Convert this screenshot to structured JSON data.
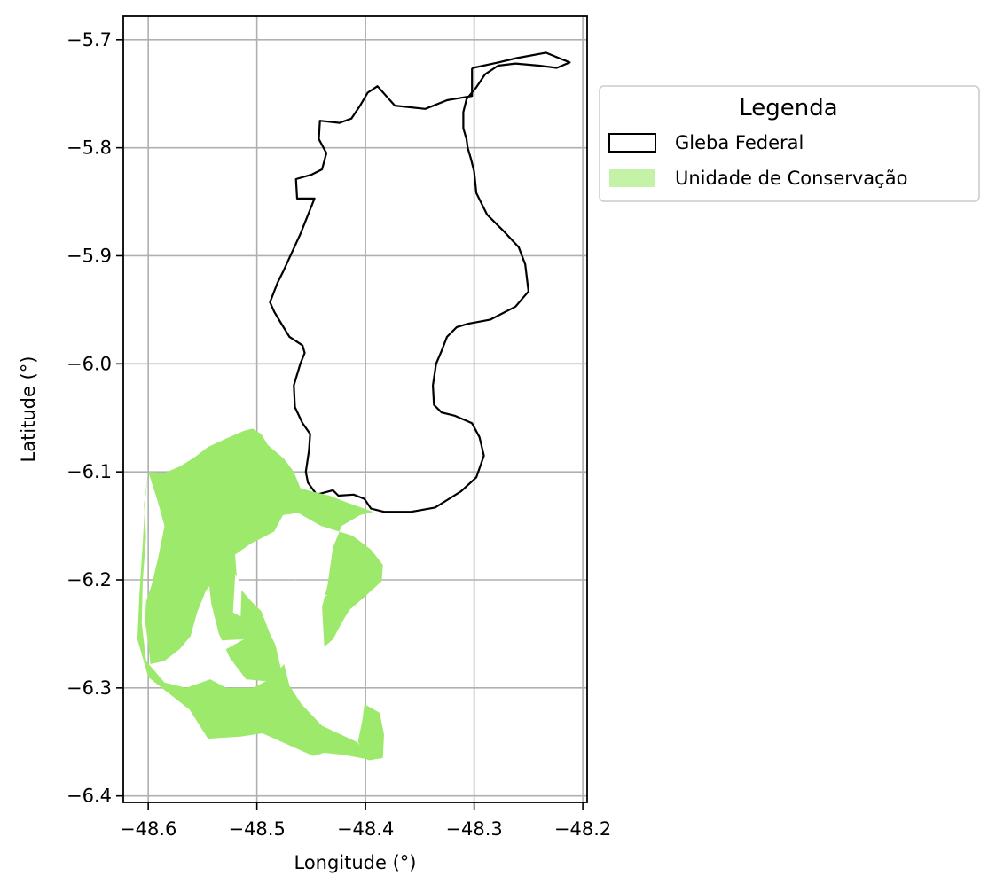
{
  "chart_data": {
    "type": "map",
    "xlabel": "Longitude (°)",
    "ylabel": "Latitude (°)",
    "xlim": [
      -48.623,
      -48.196
    ],
    "ylim": [
      -6.406,
      -5.678
    ],
    "x_ticks": [
      -48.6,
      -48.5,
      -48.4,
      -48.3,
      -48.2
    ],
    "x_tick_labels": [
      "−48.6",
      "−48.5",
      "−48.4",
      "−48.3",
      "−48.2"
    ],
    "y_ticks": [
      -5.7,
      -5.8,
      -5.9,
      -6.0,
      -6.1,
      -6.2,
      -6.3,
      -6.4
    ],
    "y_tick_labels": [
      "−5.7",
      "−5.8",
      "−5.9",
      "−6.0",
      "−6.1",
      "−6.2",
      "−6.3",
      "−6.4"
    ],
    "grid": true,
    "legend": {
      "title": "Legenda",
      "placement": "outside-right-top",
      "entries": [
        {
          "label": "Gleba Federal",
          "style": "outline",
          "color": "#000000"
        },
        {
          "label": "Unidade de Conservação",
          "style": "fill",
          "color": "#9de96b"
        }
      ]
    },
    "layers": [
      {
        "name": "Gleba Federal",
        "style": "outline",
        "stroke": "#000000",
        "polygons": [
          [
            [
              -48.301,
              -5.726
            ],
            [
              -48.278,
              -5.721
            ],
            [
              -48.261,
              -5.717
            ],
            [
              -48.234,
              -5.712
            ],
            [
              -48.212,
              -5.721
            ],
            [
              -48.224,
              -5.726
            ],
            [
              -48.24,
              -5.724
            ],
            [
              -48.262,
              -5.722
            ],
            [
              -48.278,
              -5.724
            ],
            [
              -48.29,
              -5.732
            ],
            [
              -48.298,
              -5.744
            ],
            [
              -48.307,
              -5.755
            ],
            [
              -48.31,
              -5.767
            ],
            [
              -48.31,
              -5.782
            ],
            [
              -48.307,
              -5.792
            ],
            [
              -48.306,
              -5.8
            ],
            [
              -48.303,
              -5.81
            ],
            [
              -48.3,
              -5.822
            ],
            [
              -48.298,
              -5.842
            ],
            [
              -48.288,
              -5.862
            ],
            [
              -48.272,
              -5.878
            ],
            [
              -48.259,
              -5.892
            ],
            [
              -48.253,
              -5.908
            ],
            [
              -48.25,
              -5.933
            ],
            [
              -48.262,
              -5.947
            ],
            [
              -48.285,
              -5.959
            ],
            [
              -48.306,
              -5.963
            ],
            [
              -48.316,
              -5.966
            ],
            [
              -48.325,
              -5.975
            ],
            [
              -48.33,
              -5.988
            ],
            [
              -48.335,
              -6.0
            ],
            [
              -48.338,
              -6.02
            ],
            [
              -48.337,
              -6.038
            ],
            [
              -48.33,
              -6.045
            ],
            [
              -48.318,
              -6.048
            ],
            [
              -48.302,
              -6.055
            ],
            [
              -48.295,
              -6.068
            ],
            [
              -48.291,
              -6.085
            ],
            [
              -48.298,
              -6.105
            ],
            [
              -48.312,
              -6.118
            ],
            [
              -48.336,
              -6.133
            ],
            [
              -48.358,
              -6.137
            ],
            [
              -48.383,
              -6.137
            ],
            [
              -48.395,
              -6.134
            ],
            [
              -48.401,
              -6.125
            ],
            [
              -48.411,
              -6.121
            ],
            [
              -48.425,
              -6.122
            ],
            [
              -48.43,
              -6.117
            ],
            [
              -48.445,
              -6.121
            ],
            [
              -48.453,
              -6.11
            ],
            [
              -48.455,
              -6.1
            ],
            [
              -48.452,
              -6.08
            ],
            [
              -48.451,
              -6.065
            ],
            [
              -48.458,
              -6.055
            ],
            [
              -48.465,
              -6.04
            ],
            [
              -48.466,
              -6.02
            ],
            [
              -48.46,
              -6.0
            ],
            [
              -48.456,
              -5.99
            ],
            [
              -48.458,
              -5.983
            ],
            [
              -48.47,
              -5.975
            ],
            [
              -48.478,
              -5.962
            ],
            [
              -48.484,
              -5.952
            ],
            [
              -48.488,
              -5.943
            ],
            [
              -48.481,
              -5.925
            ],
            [
              -48.476,
              -5.915
            ],
            [
              -48.46,
              -5.88
            ],
            [
              -48.447,
              -5.847
            ],
            [
              -48.463,
              -5.847
            ],
            [
              -48.464,
              -5.829
            ],
            [
              -48.45,
              -5.825
            ],
            [
              -48.44,
              -5.82
            ],
            [
              -48.436,
              -5.805
            ],
            [
              -48.443,
              -5.792
            ],
            [
              -48.442,
              -5.775
            ],
            [
              -48.424,
              -5.777
            ],
            [
              -48.413,
              -5.773
            ],
            [
              -48.405,
              -5.761
            ],
            [
              -48.398,
              -5.749
            ],
            [
              -48.389,
              -5.743
            ],
            [
              -48.373,
              -5.761
            ],
            [
              -48.345,
              -5.764
            ],
            [
              -48.325,
              -5.756
            ],
            [
              -48.302,
              -5.752
            ],
            [
              -48.302,
              -5.727
            ],
            [
              -48.301,
              -5.726
            ]
          ]
        ]
      },
      {
        "name": "Unidade de Conservação",
        "style": "fill",
        "fill": "#9de96b",
        "polygons": [
          [
            [
              -48.6,
              -6.1
            ],
            [
              -48.585,
              -6.101
            ],
            [
              -48.571,
              -6.095
            ],
            [
              -48.558,
              -6.087
            ],
            [
              -48.545,
              -6.077
            ],
            [
              -48.528,
              -6.069
            ],
            [
              -48.512,
              -6.062
            ],
            [
              -48.504,
              -6.06
            ],
            [
              -48.496,
              -6.065
            ],
            [
              -48.49,
              -6.075
            ],
            [
              -48.475,
              -6.088
            ],
            [
              -48.466,
              -6.1
            ],
            [
              -48.46,
              -6.115
            ],
            [
              -48.45,
              -6.118
            ],
            [
              -48.433,
              -6.122
            ],
            [
              -48.418,
              -6.128
            ],
            [
              -48.393,
              -6.137
            ],
            [
              -48.405,
              -6.14
            ],
            [
              -48.422,
              -6.15
            ],
            [
              -48.43,
              -6.17
            ],
            [
              -48.435,
              -6.205
            ],
            [
              -48.44,
              -6.225
            ],
            [
              -48.438,
              -6.262
            ],
            [
              -48.43,
              -6.255
            ],
            [
              -48.422,
              -6.24
            ],
            [
              -48.415,
              -6.228
            ],
            [
              -48.4,
              -6.215
            ],
            [
              -48.385,
              -6.201
            ],
            [
              -48.384,
              -6.186
            ],
            [
              -48.395,
              -6.172
            ],
            [
              -48.412,
              -6.159
            ],
            [
              -48.441,
              -6.15
            ],
            [
              -48.462,
              -6.138
            ],
            [
              -48.476,
              -6.14
            ],
            [
              -48.484,
              -6.155
            ],
            [
              -48.497,
              -6.162
            ],
            [
              -48.505,
              -6.166
            ],
            [
              -48.522,
              -6.178
            ],
            [
              -48.547,
              -6.21
            ],
            [
              -48.555,
              -6.23
            ],
            [
              -48.561,
              -6.252
            ],
            [
              -48.571,
              -6.264
            ],
            [
              -48.585,
              -6.275
            ],
            [
              -48.598,
              -6.278
            ],
            [
              -48.6,
              -6.26
            ],
            [
              -48.603,
              -6.238
            ],
            [
              -48.602,
              -6.22
            ],
            [
              -48.597,
              -6.205
            ],
            [
              -48.591,
              -6.18
            ],
            [
              -48.585,
              -6.15
            ],
            [
              -48.592,
              -6.125
            ],
            [
              -48.6,
              -6.1
            ]
          ],
          [
            [
              -48.6,
              -6.1
            ],
            [
              -48.604,
              -6.13
            ],
            [
              -48.602,
              -6.16
            ],
            [
              -48.605,
              -6.2
            ],
            [
              -48.606,
              -6.24
            ],
            [
              -48.602,
              -6.275
            ],
            [
              -48.585,
              -6.295
            ],
            [
              -48.565,
              -6.3
            ],
            [
              -48.543,
              -6.292
            ],
            [
              -48.528,
              -6.3
            ],
            [
              -48.504,
              -6.3
            ],
            [
              -48.486,
              -6.291
            ],
            [
              -48.475,
              -6.278
            ],
            [
              -48.47,
              -6.298
            ],
            [
              -48.459,
              -6.315
            ],
            [
              -48.44,
              -6.335
            ],
            [
              -48.408,
              -6.35
            ],
            [
              -48.393,
              -6.367
            ],
            [
              -48.42,
              -6.362
            ],
            [
              -48.438,
              -6.36
            ],
            [
              -48.448,
              -6.363
            ],
            [
              -48.495,
              -6.342
            ],
            [
              -48.515,
              -6.345
            ],
            [
              -48.545,
              -6.347
            ],
            [
              -48.562,
              -6.32
            ],
            [
              -48.585,
              -6.302
            ],
            [
              -48.6,
              -6.29
            ],
            [
              -48.61,
              -6.255
            ],
            [
              -48.608,
              -6.21
            ],
            [
              -48.605,
              -6.165
            ],
            [
              -48.603,
              -6.128
            ],
            [
              -48.6,
              -6.1
            ]
          ],
          [
            [
              -48.542,
              -6.16
            ],
            [
              -48.525,
              -6.162
            ],
            [
              -48.52,
              -6.178
            ],
            [
              -48.518,
              -6.205
            ],
            [
              -48.505,
              -6.22
            ],
            [
              -48.496,
              -6.229
            ],
            [
              -48.488,
              -6.25
            ],
            [
              -48.483,
              -6.26
            ],
            [
              -48.476,
              -6.29
            ],
            [
              -48.49,
              -6.294
            ],
            [
              -48.51,
              -6.292
            ],
            [
              -48.525,
              -6.272
            ],
            [
              -48.535,
              -6.25
            ],
            [
              -48.542,
              -6.222
            ],
            [
              -48.545,
              -6.195
            ],
            [
              -48.545,
              -6.172
            ],
            [
              -48.542,
              -6.16
            ]
          ],
          [
            [
              -48.401,
              -6.315
            ],
            [
              -48.387,
              -6.323
            ],
            [
              -48.383,
              -6.343
            ],
            [
              -48.384,
              -6.365
            ],
            [
              -48.398,
              -6.367
            ],
            [
              -48.407,
              -6.35
            ],
            [
              -48.403,
              -6.33
            ],
            [
              -48.401,
              -6.315
            ]
          ]
        ]
      },
      {
        "name": "holes",
        "style": "background",
        "polygons": [
          [
            [
              -48.512,
              -6.255
            ],
            [
              -48.53,
              -6.265
            ],
            [
              -48.55,
              -6.27
            ],
            [
              -48.532,
              -6.256
            ],
            [
              -48.512,
              -6.255
            ]
          ],
          [
            [
              -48.52,
              -6.195
            ],
            [
              -48.522,
              -6.23
            ],
            [
              -48.515,
              -6.234
            ],
            [
              -48.514,
              -6.205
            ],
            [
              -48.52,
              -6.195
            ]
          ],
          [
            [
              -48.465,
              -6.2
            ],
            [
              -48.445,
              -6.207
            ],
            [
              -48.435,
              -6.215
            ],
            [
              -48.455,
              -6.21
            ],
            [
              -48.465,
              -6.2
            ]
          ]
        ]
      }
    ]
  }
}
